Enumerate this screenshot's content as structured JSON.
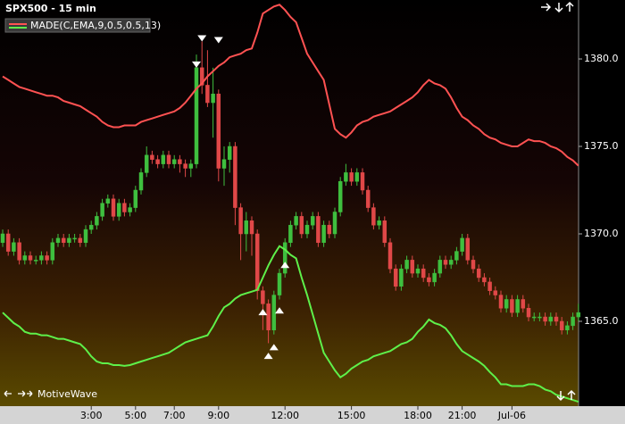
{
  "chart_data": {
    "type": "candlestick",
    "title": "SPX500 - 15 min",
    "footer": "MotiveWave",
    "categories": [
      null,
      null,
      null,
      null,
      null,
      null,
      null,
      null,
      null,
      null,
      null,
      null,
      null,
      null,
      null,
      null,
      "3:00",
      null,
      null,
      null,
      null,
      null,
      null,
      null,
      "5:00",
      null,
      null,
      null,
      null,
      null,
      null,
      "7:00",
      null,
      null,
      null,
      null,
      null,
      null,
      null,
      "9:00",
      null,
      null,
      null,
      null,
      null,
      null,
      null,
      null,
      null,
      null,
      null,
      "12:00",
      null,
      null,
      null,
      null,
      null,
      null,
      null,
      null,
      null,
      null,
      null,
      "15:00",
      null,
      null,
      null,
      null,
      null,
      null,
      null,
      null,
      null,
      null,
      null,
      "18:00",
      null,
      null,
      null,
      null,
      null,
      null,
      null,
      "21:00",
      null,
      null,
      null,
      null,
      null,
      null,
      null,
      null,
      "Jul-06",
      null,
      null,
      null,
      null,
      null,
      null,
      null,
      null,
      null,
      null,
      null,
      null
    ],
    "open": [
      1369.5,
      1370.0,
      1369.0,
      1369.5,
      1368.5,
      1368.75,
      1368.5,
      1368.5,
      1368.75,
      1368.5,
      1369.5,
      1369.75,
      1369.5,
      1369.75,
      1369.75,
      1369.5,
      1370.25,
      1370.5,
      1371.0,
      1371.75,
      1372.0,
      1371.0,
      1371.75,
      1371.25,
      1371.5,
      1372.5,
      1373.5,
      1374.5,
      1374.25,
      1374.0,
      1374.5,
      1374.0,
      1374.25,
      1374.0,
      1373.75,
      1374.0,
      1379.5,
      1378.5,
      1377.5,
      1378.0,
      1373.75,
      1374.25,
      1375.0,
      1371.5,
      1370.0,
      1370.75,
      1370.0,
      1366.75,
      1366.0,
      1364.5,
      1366.5,
      1367.75,
      1369.5,
      1370.5,
      1371.0,
      1370.0,
      1370.5,
      1371.0,
      1369.5,
      1370.5,
      1370.0,
      1371.25,
      1373.0,
      1373.5,
      1373.0,
      1373.5,
      1372.5,
      1371.5,
      1370.5,
      1370.75,
      1369.5,
      1368.0,
      1367.0,
      1368.0,
      1368.5,
      1367.75,
      1368.0,
      1367.5,
      1367.25,
      1367.75,
      1368.5,
      1368.25,
      1368.5,
      1369.0,
      1369.75,
      1368.5,
      1368.0,
      1367.5,
      1367.25,
      1366.75,
      1366.5,
      1365.75,
      1366.25,
      1365.5,
      1366.25,
      1365.75,
      1365.25,
      1365.25,
      1365.25,
      1365.0,
      1365.25,
      1365.0,
      1364.5,
      1364.75,
      1365.25
    ],
    "high": [
      1370.25,
      1370.25,
      1369.75,
      1369.75,
      1369.0,
      1369.0,
      1368.75,
      1369.0,
      1369.0,
      1369.75,
      1370.0,
      1370.0,
      1370.0,
      1370.0,
      1370.0,
      1370.5,
      1370.75,
      1371.25,
      1372.0,
      1372.25,
      1372.25,
      1372.0,
      1372.0,
      1371.75,
      1372.75,
      1373.75,
      1375.0,
      1374.75,
      1374.5,
      1374.75,
      1374.75,
      1374.5,
      1374.5,
      1374.25,
      1374.25,
      1380.25,
      1381.0,
      1380.5,
      1379.5,
      1378.25,
      1375.0,
      1375.25,
      1375.25,
      1371.75,
      1371.25,
      1371.0,
      1370.25,
      1367.0,
      1366.25,
      1366.75,
      1368.0,
      1369.75,
      1370.75,
      1371.25,
      1371.25,
      1370.75,
      1371.25,
      1371.25,
      1370.75,
      1370.75,
      1371.5,
      1373.25,
      1374.0,
      1373.75,
      1373.75,
      1373.75,
      1372.75,
      1371.75,
      1371.0,
      1371.0,
      1369.75,
      1368.25,
      1368.25,
      1368.75,
      1368.75,
      1368.25,
      1368.25,
      1367.75,
      1368.0,
      1368.75,
      1368.75,
      1368.75,
      1369.25,
      1370.0,
      1370.0,
      1368.75,
      1368.25,
      1367.75,
      1367.5,
      1367.0,
      1366.75,
      1366.5,
      1366.5,
      1366.5,
      1366.5,
      1366.0,
      1365.5,
      1365.5,
      1365.5,
      1365.5,
      1365.5,
      1365.25,
      1365.0,
      1365.5,
      1366.0
    ],
    "low": [
      1369.25,
      1368.75,
      1368.75,
      1368.25,
      1368.25,
      1368.25,
      1368.25,
      1368.25,
      1368.25,
      1368.25,
      1369.25,
      1369.25,
      1369.25,
      1369.5,
      1369.25,
      1369.25,
      1370.0,
      1370.25,
      1370.75,
      1371.5,
      1370.75,
      1370.75,
      1371.0,
      1371.0,
      1371.25,
      1372.25,
      1373.25,
      1374.0,
      1373.75,
      1373.75,
      1373.75,
      1373.75,
      1373.5,
      1373.25,
      1373.25,
      1373.75,
      1378.0,
      1377.25,
      1375.5,
      1373.0,
      1372.75,
      1373.5,
      1370.5,
      1368.5,
      1369.0,
      1368.75,
      1366.25,
      1364.5,
      1363.75,
      1364.25,
      1366.25,
      1367.5,
      1369.25,
      1370.25,
      1369.75,
      1369.75,
      1370.25,
      1369.25,
      1369.25,
      1369.75,
      1369.75,
      1371.0,
      1372.75,
      1372.75,
      1372.75,
      1372.25,
      1371.25,
      1370.25,
      1370.25,
      1369.25,
      1367.75,
      1366.75,
      1366.75,
      1367.75,
      1367.5,
      1367.5,
      1367.25,
      1367.0,
      1367.0,
      1367.5,
      1368.0,
      1368.0,
      1368.25,
      1368.75,
      1368.25,
      1367.75,
      1367.25,
      1367.0,
      1366.5,
      1366.25,
      1365.5,
      1365.5,
      1365.25,
      1365.25,
      1365.5,
      1365.0,
      1365.0,
      1365.0,
      1364.75,
      1364.75,
      1364.75,
      1364.25,
      1364.25,
      1364.5,
      1365.0
    ],
    "close": [
      1370.0,
      1369.0,
      1369.5,
      1368.5,
      1368.75,
      1368.5,
      1368.5,
      1368.75,
      1368.5,
      1369.5,
      1369.75,
      1369.5,
      1369.75,
      1369.75,
      1369.5,
      1370.25,
      1370.5,
      1371.0,
      1371.75,
      1372.0,
      1371.0,
      1371.75,
      1371.25,
      1371.5,
      1372.5,
      1373.5,
      1374.5,
      1374.25,
      1374.0,
      1374.5,
      1374.0,
      1374.25,
      1374.0,
      1373.75,
      1374.0,
      1379.5,
      1378.5,
      1377.5,
      1378.0,
      1373.75,
      1374.25,
      1375.0,
      1371.5,
      1370.0,
      1370.75,
      1370.0,
      1366.75,
      1366.0,
      1364.5,
      1366.5,
      1367.75,
      1369.5,
      1370.5,
      1371.0,
      1370.0,
      1370.5,
      1371.0,
      1369.5,
      1370.5,
      1370.0,
      1371.25,
      1373.0,
      1373.5,
      1373.0,
      1373.5,
      1372.5,
      1371.5,
      1370.5,
      1370.75,
      1369.5,
      1368.0,
      1367.0,
      1368.0,
      1368.5,
      1367.75,
      1368.0,
      1367.5,
      1367.25,
      1367.75,
      1368.5,
      1368.25,
      1368.5,
      1369.0,
      1369.75,
      1368.5,
      1368.0,
      1367.5,
      1367.25,
      1366.75,
      1366.5,
      1365.75,
      1366.25,
      1365.5,
      1366.25,
      1365.75,
      1365.25,
      1365.25,
      1365.25,
      1365.0,
      1365.25,
      1365.0,
      1364.5,
      1364.75,
      1365.25,
      1365.5
    ],
    "up_color": "#3fbf3f",
    "down_color": "#e04848",
    "indicator": {
      "name": "MADE(C,EMA,9,0.5,0.5,13)",
      "upper": {
        "color": "#ff5252",
        "values": [
          1379.0,
          1378.8,
          1378.6,
          1378.4,
          1378.3,
          1378.2,
          1378.1,
          1378.0,
          1377.9,
          1377.9,
          1377.8,
          1377.6,
          1377.5,
          1377.4,
          1377.3,
          1377.1,
          1376.9,
          1376.7,
          1376.4,
          1376.2,
          1376.1,
          1376.1,
          1376.2,
          1376.2,
          1376.2,
          1376.4,
          1376.5,
          1376.6,
          1376.7,
          1376.8,
          1376.9,
          1377.0,
          1377.2,
          1377.5,
          1377.9,
          1378.3,
          1378.6,
          1379.0,
          1379.3,
          1379.6,
          1379.8,
          1380.1,
          1380.2,
          1380.3,
          1380.5,
          1380.6,
          1381.5,
          1382.6,
          1382.8,
          1383.0,
          1383.1,
          1382.8,
          1382.4,
          1382.1,
          1381.2,
          1380.3,
          1379.8,
          1379.3,
          1378.8,
          1377.4,
          1376.0,
          1375.7,
          1375.5,
          1375.8,
          1376.2,
          1376.4,
          1376.5,
          1376.7,
          1376.8,
          1376.9,
          1377.0,
          1377.2,
          1377.4,
          1377.6,
          1377.8,
          1378.1,
          1378.5,
          1378.8,
          1378.6,
          1378.5,
          1378.3,
          1377.8,
          1377.2,
          1376.7,
          1376.5,
          1376.2,
          1376.0,
          1375.7,
          1375.5,
          1375.4,
          1375.2,
          1375.1,
          1375.0,
          1375.0,
          1375.2,
          1375.4,
          1375.3,
          1375.3,
          1375.2,
          1375.0,
          1374.9,
          1374.7,
          1374.4,
          1374.2,
          1373.9
        ]
      },
      "lower": {
        "color": "#5ef04a",
        "values": [
          1365.5,
          1365.2,
          1364.9,
          1364.7,
          1364.4,
          1364.3,
          1364.3,
          1364.2,
          1364.2,
          1364.1,
          1364.0,
          1364.0,
          1363.9,
          1363.8,
          1363.7,
          1363.4,
          1363.0,
          1362.7,
          1362.6,
          1362.6,
          1362.5,
          1362.5,
          1362.45,
          1362.5,
          1362.6,
          1362.7,
          1362.8,
          1362.9,
          1363.0,
          1363.1,
          1363.2,
          1363.4,
          1363.6,
          1363.8,
          1363.9,
          1364.0,
          1364.1,
          1364.2,
          1364.7,
          1365.3,
          1365.8,
          1366.0,
          1366.3,
          1366.5,
          1366.6,
          1366.7,
          1366.8,
          1367.5,
          1368.2,
          1368.8,
          1369.3,
          1369.1,
          1368.8,
          1368.6,
          1367.5,
          1366.5,
          1365.4,
          1364.3,
          1363.2,
          1362.7,
          1362.2,
          1361.8,
          1362.0,
          1362.3,
          1362.5,
          1362.7,
          1362.8,
          1363.0,
          1363.1,
          1363.2,
          1363.3,
          1363.5,
          1363.7,
          1363.8,
          1364.0,
          1364.4,
          1364.7,
          1365.1,
          1364.9,
          1364.8,
          1364.6,
          1364.2,
          1363.7,
          1363.3,
          1363.1,
          1362.9,
          1362.7,
          1362.45,
          1362.1,
          1361.8,
          1361.4,
          1361.4,
          1361.3,
          1361.3,
          1361.3,
          1361.4,
          1361.4,
          1361.3,
          1361.1,
          1361.0,
          1360.8,
          1360.7,
          1360.6,
          1360.5,
          1360.4
        ]
      }
    },
    "signals": [
      {
        "x": 35,
        "y": 1379.7,
        "dir": "down"
      },
      {
        "x": 36,
        "y": 1381.2,
        "dir": "down"
      },
      {
        "x": 39,
        "y": 1381.1,
        "dir": "down"
      },
      {
        "x": 47,
        "y": 1365.5,
        "dir": "up"
      },
      {
        "x": 50,
        "y": 1365.6,
        "dir": "up"
      },
      {
        "x": 51,
        "y": 1368.2,
        "dir": "up"
      },
      {
        "x": 49,
        "y": 1363.5,
        "dir": "up"
      },
      {
        "x": 48,
        "y": 1363.0,
        "dir": "up"
      }
    ],
    "ylim": [
      1360.15,
      1383.37
    ],
    "yticks": [
      {
        "value": 1365,
        "label": "1365.0"
      },
      {
        "value": 1370,
        "label": "1370.0"
      },
      {
        "value": 1375,
        "label": "1375.0"
      },
      {
        "value": 1380,
        "label": "1380.0"
      }
    ]
  }
}
